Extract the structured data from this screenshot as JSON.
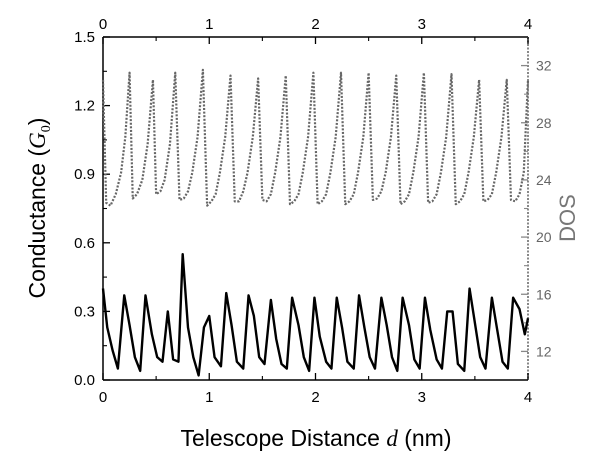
{
  "chart_data": {
    "type": "line",
    "xlabel": "Telescope Distance d (nm)",
    "xlabel_parts": {
      "pre": "Telescope Distance ",
      "var": "d",
      "post": " (nm)"
    },
    "xlim": [
      0,
      4
    ],
    "x_ticks": [
      "0",
      "1",
      "2",
      "3",
      "4"
    ],
    "x_top_ticks": [
      "0",
      "1",
      "2",
      "3",
      "4"
    ],
    "ylabel_left": "Conductance (G0)",
    "ylabel_left_parts": {
      "pre": "Conductance (",
      "var": "G",
      "sub": "0",
      "post": ")"
    },
    "ylim_left": [
      0,
      1.5
    ],
    "y_left_ticks": [
      "0.0",
      "0.3",
      "0.6",
      "0.9",
      "1.2",
      "1.5"
    ],
    "ylabel_right": "DOS",
    "ylim_right": [
      10,
      34
    ],
    "y_right_ticks": [
      "12",
      "16",
      "20",
      "24",
      "28",
      "32"
    ],
    "colors": {
      "conductance": "#000000",
      "dos": "#666666",
      "right_axis": "#888888"
    },
    "series": [
      {
        "name": "",
        "axis": "left",
        "style": "solid",
        "x": [
          0.0,
          0.04,
          0.09,
          0.14,
          0.2,
          0.25,
          0.3,
          0.35,
          0.4,
          0.46,
          0.51,
          0.56,
          0.61,
          0.66,
          0.71,
          0.75,
          0.8,
          0.85,
          0.9,
          0.95,
          1.0,
          1.05,
          1.11,
          1.16,
          1.21,
          1.26,
          1.32,
          1.37,
          1.42,
          1.47,
          1.52,
          1.58,
          1.63,
          1.68,
          1.73,
          1.78,
          1.84,
          1.89,
          1.94,
          1.99,
          2.04,
          2.1,
          2.15,
          2.2,
          2.25,
          2.3,
          2.36,
          2.41,
          2.46,
          2.51,
          2.56,
          2.62,
          2.67,
          2.72,
          2.77,
          2.82,
          2.88,
          2.93,
          2.98,
          3.03,
          3.08,
          3.14,
          3.19,
          3.24,
          3.29,
          3.34,
          3.4,
          3.45,
          3.5,
          3.55,
          3.6,
          3.66,
          3.71,
          3.76,
          3.81,
          3.86,
          3.92,
          3.97,
          4.0
        ],
        "y": [
          0.4,
          0.23,
          0.13,
          0.05,
          0.37,
          0.24,
          0.1,
          0.04,
          0.37,
          0.2,
          0.1,
          0.08,
          0.3,
          0.09,
          0.08,
          0.55,
          0.23,
          0.1,
          0.02,
          0.23,
          0.28,
          0.1,
          0.06,
          0.38,
          0.24,
          0.08,
          0.05,
          0.37,
          0.28,
          0.1,
          0.07,
          0.35,
          0.18,
          0.07,
          0.05,
          0.36,
          0.24,
          0.1,
          0.04,
          0.36,
          0.19,
          0.08,
          0.05,
          0.36,
          0.23,
          0.08,
          0.05,
          0.37,
          0.23,
          0.1,
          0.05,
          0.36,
          0.24,
          0.1,
          0.04,
          0.36,
          0.24,
          0.09,
          0.05,
          0.36,
          0.22,
          0.09,
          0.05,
          0.3,
          0.3,
          0.07,
          0.04,
          0.4,
          0.25,
          0.1,
          0.05,
          0.36,
          0.22,
          0.08,
          0.05,
          0.36,
          0.31,
          0.2,
          0.27
        ]
      },
      {
        "name": "",
        "axis": "right",
        "style": "dotted",
        "x": [
          0.0,
          0.03,
          0.07,
          0.12,
          0.17,
          0.21,
          0.25,
          0.28,
          0.32,
          0.37,
          0.42,
          0.47,
          0.5,
          0.54,
          0.58,
          0.63,
          0.68,
          0.72,
          0.76,
          0.8,
          0.84,
          0.89,
          0.94,
          0.98,
          1.02,
          1.06,
          1.1,
          1.15,
          1.2,
          1.24,
          1.28,
          1.32,
          1.36,
          1.41,
          1.46,
          1.5,
          1.54,
          1.58,
          1.62,
          1.67,
          1.72,
          1.76,
          1.8,
          1.84,
          1.88,
          1.93,
          1.98,
          2.02,
          2.06,
          2.1,
          2.14,
          2.19,
          2.24,
          2.28,
          2.32,
          2.36,
          2.4,
          2.45,
          2.5,
          2.54,
          2.58,
          2.62,
          2.66,
          2.71,
          2.76,
          2.8,
          2.84,
          2.88,
          2.92,
          2.97,
          3.02,
          3.06,
          3.1,
          3.14,
          3.18,
          3.23,
          3.28,
          3.32,
          3.36,
          3.4,
          3.44,
          3.49,
          3.54,
          3.58,
          3.62,
          3.66,
          3.7,
          3.75,
          3.8,
          3.84,
          3.88,
          3.92,
          3.96,
          4.0
        ],
        "y": [
          31.0,
          22.4,
          22.2,
          23.0,
          24.5,
          27.0,
          31.5,
          22.7,
          23.0,
          24.0,
          26.5,
          31.0,
          23.0,
          23.2,
          24.0,
          26.5,
          31.5,
          22.6,
          22.7,
          23.2,
          24.5,
          27.0,
          31.7,
          22.2,
          22.5,
          23.0,
          24.5,
          27.0,
          31.3,
          22.5,
          22.5,
          23.2,
          24.5,
          27.0,
          31.1,
          22.6,
          22.5,
          23.0,
          24.5,
          27.0,
          31.3,
          22.3,
          22.5,
          23.0,
          24.5,
          27.0,
          31.5,
          22.3,
          22.5,
          23.0,
          24.5,
          27.0,
          31.5,
          22.3,
          22.5,
          23.0,
          24.5,
          27.0,
          31.5,
          22.6,
          22.7,
          23.2,
          24.5,
          27.0,
          31.3,
          22.3,
          22.5,
          23.0,
          24.5,
          27.0,
          31.5,
          22.4,
          22.5,
          23.0,
          24.5,
          27.0,
          31.4,
          22.3,
          22.5,
          23.0,
          24.5,
          27.0,
          31.0,
          22.5,
          22.6,
          23.0,
          24.5,
          27.0,
          31.0,
          22.6,
          22.5,
          23.0,
          24.5,
          31.0
        ]
      }
    ]
  }
}
